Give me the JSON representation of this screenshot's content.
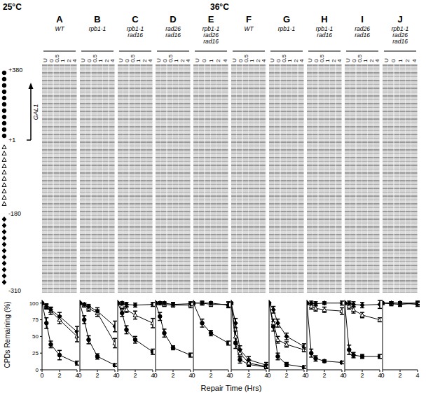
{
  "figure": {
    "xlabel": "Repair Time (Hrs)",
    "ylabel": "CPDs Remaining (%)",
    "gel": {
      "gene": "GAL1",
      "labels": [
        "+380",
        "+1",
        "-180",
        "-310"
      ],
      "markers": [
        "circle",
        "triangle-open",
        "diamond"
      ]
    }
  },
  "chart_data": [
    {
      "type": "line",
      "group": "25°C",
      "title": "A",
      "subtitle": "WT",
      "lanes": [
        "U",
        "0",
        "0.5",
        "1",
        "2",
        "4"
      ],
      "x": [
        0,
        0.5,
        1,
        2,
        4
      ],
      "xlim": [
        0,
        4
      ],
      "xticks": [
        0,
        2,
        4
      ],
      "ylim": [
        0,
        105
      ],
      "yticks": [
        0,
        25,
        50,
        75,
        100
      ],
      "series": [
        {
          "marker": "circle",
          "color": "#000000",
          "values": [
            100,
            70,
            38,
            22,
            10
          ],
          "errors": [
            0,
            8,
            5,
            7,
            3
          ]
        },
        {
          "marker": "triangle-open",
          "color": "#000000",
          "values": [
            100,
            95,
            88,
            75,
            50
          ],
          "errors": [
            0,
            4,
            5,
            6,
            8
          ]
        },
        {
          "marker": "diamond",
          "color": "#000000",
          "values": [
            100,
            95,
            90,
            80,
            57
          ],
          "errors": [
            0,
            3,
            4,
            6,
            8
          ]
        }
      ]
    },
    {
      "type": "line",
      "group": "25°C",
      "title": "B",
      "subtitle": "rpb1-1",
      "lanes": [
        "U",
        "0",
        "0.5",
        "1",
        "2",
        "4"
      ],
      "x": [
        0,
        0.5,
        1,
        2,
        4
      ],
      "xlim": [
        0,
        4
      ],
      "xticks": [
        0,
        2,
        4
      ],
      "ylim": [
        0,
        105
      ],
      "yticks": [
        0,
        25,
        50,
        75,
        100
      ],
      "tick_labels": "x",
      "series": [
        {
          "marker": "circle",
          "color": "#000000",
          "values": [
            100,
            75,
            45,
            20,
            7
          ],
          "errors": [
            0,
            6,
            6,
            4,
            2
          ]
        },
        {
          "marker": "triangle-open",
          "color": "#000000",
          "values": [
            100,
            97,
            92,
            85,
            40
          ],
          "errors": [
            0,
            3,
            4,
            5,
            7
          ]
        },
        {
          "marker": "diamond",
          "color": "#000000",
          "values": [
            100,
            98,
            95,
            88,
            65
          ],
          "errors": [
            0,
            2,
            3,
            5,
            8
          ]
        }
      ]
    },
    {
      "type": "line",
      "group": "25°C",
      "title": "C",
      "subtitle": "rpb1-1 rad16",
      "lanes": [
        "U",
        "0",
        "0.5",
        "1",
        "2",
        "4"
      ],
      "x": [
        0,
        0.5,
        1,
        2,
        4
      ],
      "xlim": [
        0,
        4
      ],
      "xticks": [
        0,
        2,
        4
      ],
      "ylim": [
        0,
        105
      ],
      "yticks": [
        0,
        25,
        50,
        75,
        100
      ],
      "tick_labels": "x",
      "series": [
        {
          "marker": "circle",
          "color": "#000000",
          "values": [
            100,
            85,
            60,
            45,
            27
          ],
          "errors": [
            0,
            5,
            6,
            5,
            4
          ]
        },
        {
          "marker": "triangle-open",
          "color": "#000000",
          "values": [
            100,
            95,
            90,
            82,
            70
          ],
          "errors": [
            0,
            3,
            4,
            6,
            7
          ]
        },
        {
          "marker": "diamond",
          "color": "#000000",
          "values": [
            100,
            100,
            98,
            97,
            98
          ],
          "errors": [
            0,
            2,
            3,
            3,
            3
          ]
        }
      ]
    },
    {
      "type": "line",
      "group": "25°C",
      "title": "D",
      "subtitle": "rad26 rad16",
      "lanes": [
        "U",
        "0",
        "0.5",
        "1",
        "2",
        "4"
      ],
      "x": [
        0,
        0.5,
        1,
        2,
        4
      ],
      "xlim": [
        0,
        4
      ],
      "xticks": [
        0,
        2,
        4
      ],
      "ylim": [
        0,
        105
      ],
      "yticks": [
        0,
        25,
        50,
        75,
        100
      ],
      "tick_labels": "x",
      "series": [
        {
          "marker": "circle",
          "color": "#000000",
          "values": [
            100,
            80,
            55,
            33,
            22
          ],
          "errors": [
            0,
            6,
            6,
            3,
            3
          ]
        },
        {
          "marker": "triangle-open",
          "color": "#000000",
          "values": [
            100,
            100,
            98,
            97,
            97
          ],
          "errors": [
            0,
            2,
            3,
            3,
            4
          ]
        },
        {
          "marker": "diamond",
          "color": "#000000",
          "values": [
            100,
            100,
            100,
            98,
            99
          ],
          "errors": [
            0,
            2,
            2,
            3,
            3
          ]
        }
      ]
    },
    {
      "type": "line",
      "group": "25°C",
      "title": "E",
      "subtitle": "rpb1-1 rad26 rad16",
      "lanes": [
        "U",
        "0",
        "1",
        "2",
        "4"
      ],
      "x": [
        0,
        1,
        2,
        4
      ],
      "xlim": [
        0,
        4
      ],
      "xticks": [
        0,
        2,
        4
      ],
      "ylim": [
        0,
        105
      ],
      "yticks": [
        0,
        25,
        50,
        75,
        100
      ],
      "tick_labels": "x",
      "series": [
        {
          "marker": "circle",
          "color": "#000000",
          "values": [
            100,
            70,
            55,
            40
          ],
          "errors": [
            0,
            6,
            4,
            3
          ]
        },
        {
          "marker": "triangle-open",
          "color": "#000000",
          "values": [
            100,
            100,
            98,
            98
          ],
          "errors": [
            0,
            3,
            3,
            4
          ]
        },
        {
          "marker": "diamond",
          "color": "#000000",
          "values": [
            100,
            100,
            100,
            97
          ],
          "errors": [
            0,
            2,
            2,
            4
          ]
        }
      ]
    },
    {
      "type": "line",
      "group": "36°C",
      "title": "F",
      "subtitle": "WT",
      "lanes": [
        "U",
        "0",
        "0.5",
        "1",
        "2",
        "4"
      ],
      "x": [
        0,
        0.5,
        1,
        2,
        4
      ],
      "xlim": [
        0,
        4
      ],
      "xticks": [
        0,
        2,
        4
      ],
      "ylim": [
        0,
        105
      ],
      "yticks": [
        0,
        25,
        50,
        75,
        100
      ],
      "tick_labels": "x",
      "series": [
        {
          "marker": "circle",
          "color": "#000000",
          "values": [
            100,
            40,
            15,
            8,
            4
          ],
          "errors": [
            0,
            8,
            5,
            3,
            2
          ]
        },
        {
          "marker": "triangle-open",
          "color": "#000000",
          "values": [
            100,
            50,
            25,
            10,
            5
          ],
          "errors": [
            0,
            8,
            6,
            4,
            3
          ]
        },
        {
          "marker": "diamond",
          "color": "#000000",
          "values": [
            100,
            70,
            30,
            15,
            7
          ],
          "errors": [
            0,
            7,
            6,
            5,
            4
          ]
        }
      ]
    },
    {
      "type": "line",
      "group": "36°C",
      "title": "G",
      "subtitle": "rpb1-1",
      "lanes": [
        "U",
        "0",
        "0.5",
        "1",
        "2",
        "4"
      ],
      "x": [
        0,
        0.5,
        1,
        2,
        4
      ],
      "xlim": [
        0,
        4
      ],
      "xticks": [
        0,
        2,
        4
      ],
      "ylim": [
        0,
        105
      ],
      "yticks": [
        0,
        25,
        50,
        75,
        100
      ],
      "tick_labels": "x",
      "series": [
        {
          "marker": "circle",
          "color": "#000000",
          "values": [
            100,
            65,
            20,
            8,
            4
          ],
          "errors": [
            0,
            7,
            5,
            3,
            2
          ]
        },
        {
          "marker": "triangle-open",
          "color": "#000000",
          "values": [
            100,
            70,
            45,
            38,
            30
          ],
          "errors": [
            0,
            6,
            5,
            4,
            3
          ]
        },
        {
          "marker": "diamond",
          "color": "#000000",
          "values": [
            100,
            90,
            70,
            50,
            35
          ],
          "errors": [
            0,
            5,
            6,
            5,
            4
          ]
        }
      ]
    },
    {
      "type": "line",
      "group": "36°C",
      "title": "H",
      "subtitle": "rpb1-1 rad16",
      "lanes": [
        "U",
        "0",
        "0.5",
        "1",
        "2",
        "4"
      ],
      "x": [
        0,
        0.5,
        1,
        2,
        4
      ],
      "xlim": [
        0,
        4
      ],
      "xticks": [
        0,
        2,
        4
      ],
      "ylim": [
        0,
        105
      ],
      "yticks": [
        0,
        25,
        50,
        75,
        100
      ],
      "tick_labels": "x",
      "series": [
        {
          "marker": "circle",
          "color": "#000000",
          "values": [
            100,
            25,
            17,
            13,
            11
          ],
          "errors": [
            0,
            6,
            4,
            2,
            2
          ]
        },
        {
          "marker": "triangle-open",
          "color": "#000000",
          "values": [
            100,
            95,
            92,
            90,
            88
          ],
          "errors": [
            0,
            4,
            4,
            4,
            5
          ]
        },
        {
          "marker": "diamond",
          "color": "#000000",
          "values": [
            100,
            100,
            99,
            100,
            100
          ],
          "errors": [
            0,
            3,
            3,
            2,
            3
          ]
        }
      ]
    },
    {
      "type": "line",
      "group": "36°C",
      "title": "I",
      "subtitle": "rad26 rad16",
      "lanes": [
        "U",
        "0",
        "0.5",
        "1",
        "2",
        "4"
      ],
      "x": [
        0,
        0.5,
        1,
        2,
        4
      ],
      "xlim": [
        0,
        4
      ],
      "xticks": [
        0,
        2,
        4
      ],
      "ylim": [
        0,
        105
      ],
      "yticks": [
        0,
        25,
        50,
        75,
        100
      ],
      "tick_labels": "x",
      "series": [
        {
          "marker": "circle",
          "color": "#000000",
          "values": [
            100,
            30,
            22,
            20,
            20
          ],
          "errors": [
            0,
            7,
            4,
            3,
            3
          ]
        },
        {
          "marker": "triangle-open",
          "color": "#000000",
          "values": [
            100,
            95,
            90,
            82,
            75
          ],
          "errors": [
            0,
            4,
            5,
            4,
            3
          ]
        },
        {
          "marker": "diamond",
          "color": "#000000",
          "values": [
            100,
            100,
            98,
            97,
            98
          ],
          "errors": [
            0,
            3,
            4,
            4,
            6
          ]
        }
      ]
    },
    {
      "type": "line",
      "group": "36°C",
      "title": "J",
      "subtitle": "rpb1-1 rad26 rad16",
      "lanes": [
        "U",
        "0",
        "1",
        "2",
        "4"
      ],
      "x": [
        0,
        1,
        2,
        4
      ],
      "xlim": [
        0,
        4
      ],
      "xticks": [
        0,
        2,
        4
      ],
      "ylim": [
        0,
        105
      ],
      "yticks": [
        0,
        25,
        50,
        75,
        100
      ],
      "tick_labels": "x",
      "series": [
        {
          "marker": "circle",
          "color": "#000000",
          "values": [
            100,
            99,
            98,
            100
          ],
          "errors": [
            0,
            3,
            3,
            3
          ]
        },
        {
          "marker": "triangle-open",
          "color": "#000000",
          "values": [
            100,
            100,
            100,
            100
          ],
          "errors": [
            0,
            2,
            2,
            2
          ]
        },
        {
          "marker": "diamond",
          "color": "#000000",
          "values": [
            100,
            100,
            100,
            98
          ],
          "errors": [
            0,
            2,
            2,
            3
          ]
        }
      ]
    }
  ]
}
